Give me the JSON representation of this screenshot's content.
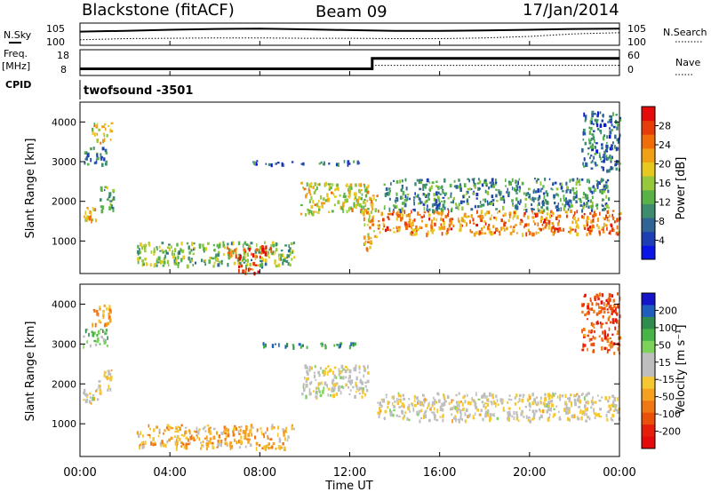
{
  "header": {
    "station": "Blackstone (fitACF)",
    "beam": "Beam 09",
    "date": "17/Jan/2014"
  },
  "left_labels": {
    "nsky": "N.Sky",
    "freq": "Freq.",
    "freq_unit": "[MHz]",
    "cpid": "CPID"
  },
  "right_labels": {
    "nsearch": "N.Search",
    "nave": "Nave"
  },
  "cpid_text": "twofsound  -3501",
  "xlabel": "Time UT",
  "x_ticks": [
    "00:00",
    "04:00",
    "08:00",
    "12:00",
    "16:00",
    "20:00",
    "00:00"
  ],
  "noise_panel": {
    "left_ticks": [
      "10^5",
      "10^0"
    ],
    "right_ticks": [
      "10^5",
      "10^0"
    ]
  },
  "freq_panel": {
    "left_ticks": [
      "18",
      "8"
    ],
    "right_ticks": [
      "60",
      "0"
    ]
  },
  "chart_data": [
    {
      "type": "line",
      "name": "noise",
      "ylim_log10": [
        0,
        5
      ],
      "x_hours": [
        0,
        2,
        4,
        6,
        8,
        10,
        12,
        14,
        16,
        18,
        20,
        22,
        24
      ],
      "series": [
        {
          "name": "N.Sky",
          "values_log10": [
            3.2,
            3.4,
            3.7,
            3.9,
            4.0,
            3.8,
            3.6,
            3.4,
            3.4,
            3.5,
            3.7,
            3.9,
            4.0
          ]
        },
        {
          "name": "N.Search",
          "values_log10": [
            1.0,
            1.3,
            1.4,
            1.5,
            1.5,
            1.4,
            1.4,
            1.3,
            1.3,
            1.5,
            1.9,
            2.6,
            2.9
          ]
        }
      ]
    },
    {
      "type": "line",
      "name": "frequency",
      "x_hours": [
        0,
        13,
        13,
        24
      ],
      "series": [
        {
          "name": "Freq.",
          "unit": "MHz",
          "values": [
            10.5,
            10.5,
            17.0,
            17.0
          ]
        },
        {
          "name": "Nave",
          "values": [
            15,
            15,
            28,
            28
          ]
        }
      ]
    },
    {
      "type": "heatmap",
      "name": "power",
      "ylabel": "Slant Range [km]",
      "colorbar_label": "Power [dB]",
      "ylim": [
        180,
        4500
      ],
      "y_ticks": [
        1000,
        2000,
        3000,
        4000
      ],
      "colorbar_ticks": [
        4,
        8,
        12,
        16,
        20,
        24,
        28
      ],
      "colorbar_range": [
        0,
        32
      ],
      "colorbar_colors": [
        "#0a14e6",
        "#1e3fb4",
        "#2e6496",
        "#3e8c6e",
        "#58b246",
        "#96c83c",
        "#e6c81e",
        "#f0a014",
        "#f06e0a",
        "#e63c0a",
        "#e60a0a"
      ],
      "bands": [
        {
          "name": "early-range-1700",
          "t0": 0.1,
          "t1": 0.8,
          "r0": 1500,
          "r1": 1900,
          "level": 22
        },
        {
          "name": "early-rising",
          "t0": 0.8,
          "t1": 1.5,
          "r0": 1800,
          "r1": 2400,
          "level": 14
        },
        {
          "name": "early-3200",
          "t0": 0.1,
          "t1": 1.2,
          "r0": 2950,
          "r1": 3400,
          "level": 9
        },
        {
          "name": "early-3800",
          "t0": 0.5,
          "t1": 1.4,
          "r0": 3500,
          "r1": 4000,
          "level": 18
        },
        {
          "name": "near-range-layer",
          "t0": 2.5,
          "t1": 9.5,
          "r0": 400,
          "r1": 1000,
          "level": 14
        },
        {
          "name": "near-range-core",
          "t0": 6.5,
          "t1": 8.5,
          "r0": 600,
          "r1": 900,
          "level": 26
        },
        {
          "name": "near-range-low",
          "t0": 7.0,
          "t1": 8.0,
          "r0": 200,
          "r1": 500,
          "level": 27
        },
        {
          "name": "line-3000",
          "t0": 7.5,
          "t1": 12.5,
          "r0": 2950,
          "r1": 3050,
          "level": 8
        },
        {
          "name": "midday-2000",
          "t0": 9.8,
          "t1": 12.8,
          "r0": 1700,
          "r1": 2500,
          "level": 18
        },
        {
          "name": "spike-13",
          "t0": 12.6,
          "t1": 13.2,
          "r0": 800,
          "r1": 2200,
          "level": 20
        },
        {
          "name": "afternoon-band",
          "t0": 13.2,
          "t1": 24.0,
          "r0": 1200,
          "r1": 1800,
          "level": 24
        },
        {
          "name": "afternoon-upper",
          "t0": 13.5,
          "t1": 23.5,
          "r0": 1800,
          "r1": 2600,
          "level": 10
        },
        {
          "name": "late-3500",
          "t0": 22.3,
          "t1": 24.0,
          "r0": 2800,
          "r1": 4300,
          "level": 8
        }
      ]
    },
    {
      "type": "heatmap",
      "name": "velocity",
      "ylabel": "Slant Range [km]",
      "colorbar_label": "Velocity [m s⁻¹]",
      "ylim": [
        180,
        4500
      ],
      "y_ticks": [
        1000,
        2000,
        3000,
        4000
      ],
      "colorbar_ticks": [
        200,
        100,
        50,
        15,
        -15,
        -50,
        -100,
        -200
      ],
      "colorbar_colors": [
        "#1414c8",
        "#1e5fbe",
        "#2e8c4e",
        "#46b446",
        "#7cd25a",
        "#bebebe",
        "#bebebe",
        "#f5c832",
        "#f5a01e",
        "#f07814",
        "#eb500a",
        "#e61e0a",
        "#e60a0a"
      ],
      "bands": [
        {
          "name": "early-range-1700",
          "t0": 0.1,
          "t1": 0.8,
          "r0": 1500,
          "r1": 1900,
          "velocity": 0
        },
        {
          "name": "early-rising",
          "t0": 0.8,
          "t1": 1.5,
          "r0": 1800,
          "r1": 2400,
          "velocity": -20
        },
        {
          "name": "early-3200",
          "t0": 0.1,
          "t1": 1.2,
          "r0": 2950,
          "r1": 3400,
          "velocity": 80
        },
        {
          "name": "early-3800",
          "t0": 0.5,
          "t1": 1.4,
          "r0": 3500,
          "r1": 4000,
          "velocity": -60
        },
        {
          "name": "near-range-layer",
          "t0": 2.5,
          "t1": 9.5,
          "r0": 400,
          "r1": 1000,
          "velocity": -60
        },
        {
          "name": "line-3000",
          "t0": 7.5,
          "t1": 12.5,
          "r0": 2950,
          "r1": 3050,
          "velocity": 150
        },
        {
          "name": "midday-2000",
          "t0": 9.8,
          "t1": 12.8,
          "r0": 1700,
          "r1": 2500,
          "velocity": 10
        },
        {
          "name": "afternoon-band",
          "t0": 13.2,
          "t1": 24.0,
          "r0": 1100,
          "r1": 1800,
          "velocity": 0
        },
        {
          "name": "late-3500",
          "t0": 22.3,
          "t1": 24.0,
          "r0": 2800,
          "r1": 4300,
          "velocity": -150
        }
      ]
    }
  ]
}
